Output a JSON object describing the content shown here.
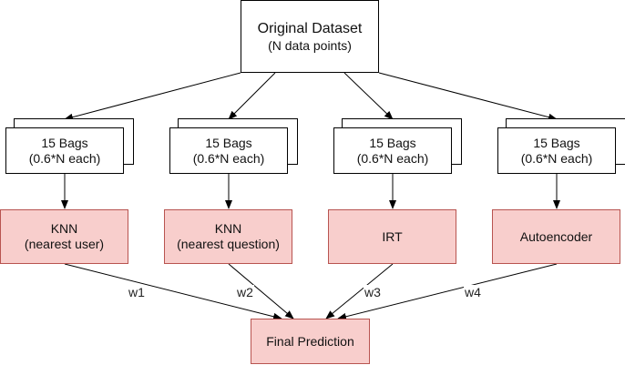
{
  "source": {
    "line1": "Original Dataset",
    "line2": "(N data points)"
  },
  "bags": [
    {
      "line1": "15 Bags",
      "line2": "(0.6*N each)"
    },
    {
      "line1": "15 Bags",
      "line2": "(0.6*N each)"
    },
    {
      "line1": "15 Bags",
      "line2": "(0.6*N each)"
    },
    {
      "line1": "15 Bags",
      "line2": "(0.6*N each)"
    }
  ],
  "models": [
    {
      "line1": "KNN",
      "line2": "(nearest user)"
    },
    {
      "line1": "KNN",
      "line2": "(nearest question)"
    },
    {
      "line1": "IRT",
      "line2": ""
    },
    {
      "line1": "Autoencoder",
      "line2": ""
    }
  ],
  "weights": [
    "w1",
    "w2",
    "w3",
    "w4"
  ],
  "output": {
    "label": "Final Prediction"
  },
  "colors": {
    "model_fill": "#f8cecc",
    "model_border": "#b85450",
    "edge": "#000000"
  }
}
